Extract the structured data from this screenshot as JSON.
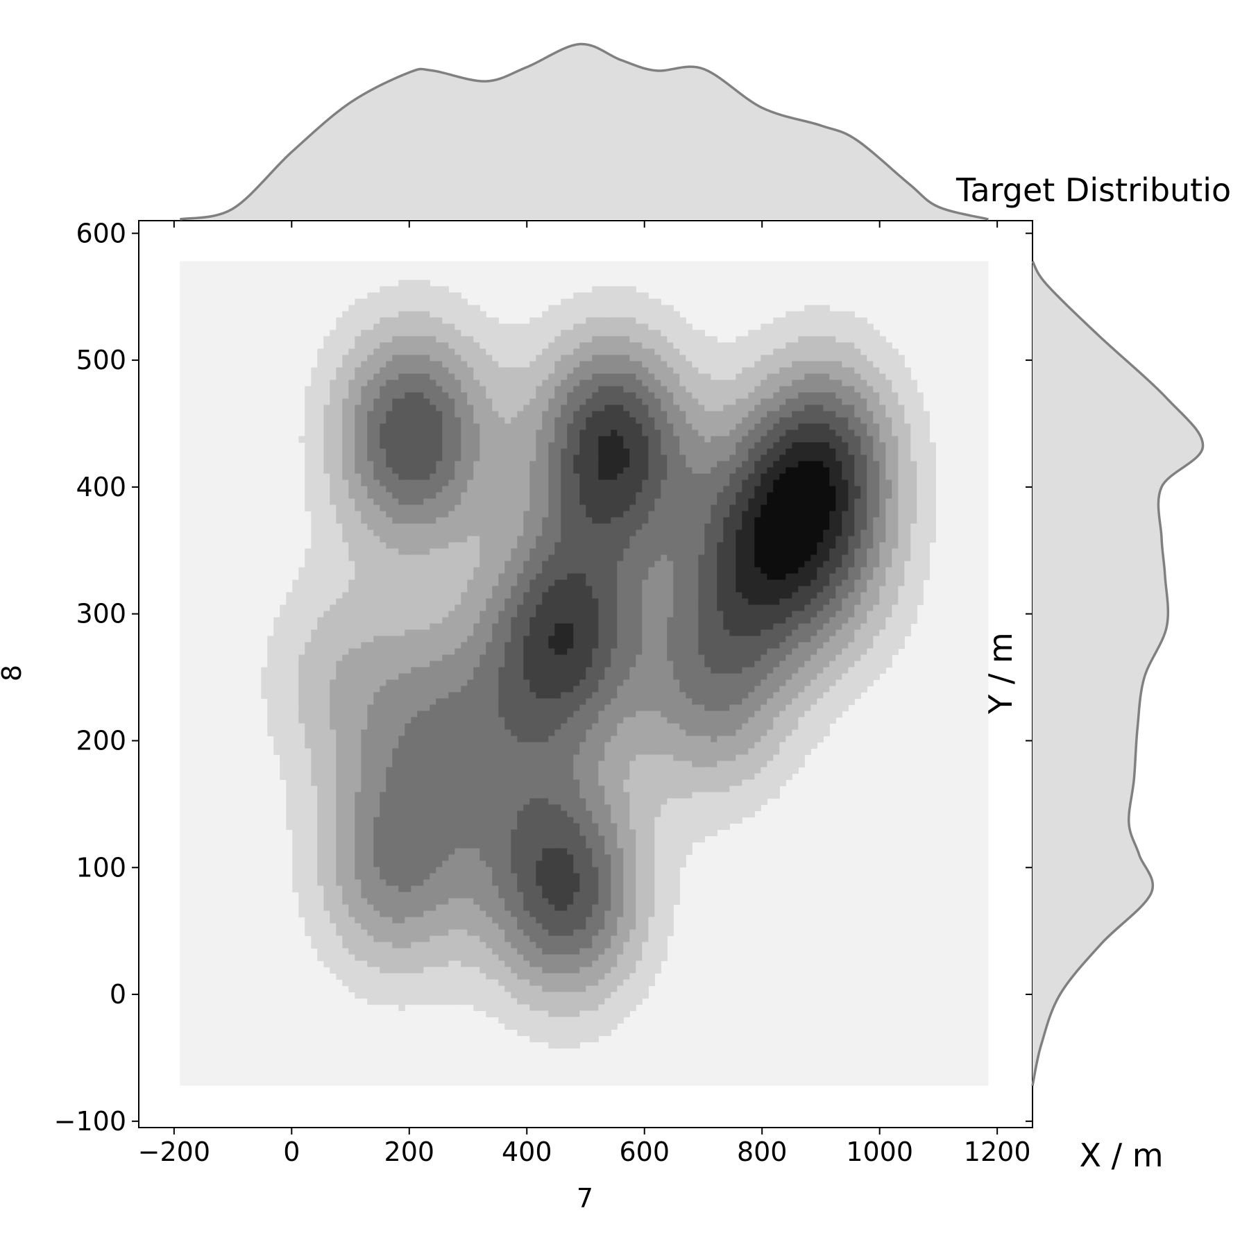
{
  "chart_data": {
    "type": "heatmap",
    "subtype": "kde-joint-plot",
    "title": "Target Distributio",
    "xlabel": "7",
    "ylabel": "8",
    "x_margin_label": "X / m",
    "y_margin_label": "Y / m",
    "xlim": [
      -260,
      1260
    ],
    "ylim": [
      -105,
      610
    ],
    "grid": false,
    "x_ticks": [
      -200,
      0,
      200,
      400,
      600,
      800,
      1000,
      1200
    ],
    "y_ticks": [
      -100,
      0,
      100,
      200,
      300,
      400,
      500,
      600
    ],
    "x_tick_labels": [
      "−200",
      "0",
      "200",
      "400",
      "600",
      "800",
      "1000",
      "1200"
    ],
    "y_tick_labels": [
      "−100",
      "0",
      "100",
      "200",
      "300",
      "400",
      "500",
      "600"
    ],
    "kde_grid_extent": {
      "x": [
        -190,
        1185
      ],
      "y": [
        -72,
        578
      ]
    },
    "colors": {
      "background_level": "#f2f2f2",
      "levels": [
        "#f2f2f2",
        "#d9d9d9",
        "#bfbfbf",
        "#a6a6a6",
        "#8c8c8c",
        "#737373",
        "#5a5a5a",
        "#404040",
        "#262626",
        "#0d0d0d"
      ],
      "marginal_fill": "#dedede",
      "marginal_line": "#808080"
    },
    "density_centers": [
      {
        "x": 205,
        "y": 440,
        "amplitude": 0.88
      },
      {
        "x": 545,
        "y": 432,
        "amplitude": 1.0
      },
      {
        "x": 900,
        "y": 420,
        "amplitude": 0.85
      },
      {
        "x": 790,
        "y": 345,
        "amplitude": 0.72
      },
      {
        "x": 460,
        "y": 282,
        "amplitude": 0.92
      },
      {
        "x": 465,
        "y": 80,
        "amplitude": 0.85
      },
      {
        "x": 175,
        "y": 100,
        "amplitude": 0.6
      },
      {
        "x": 715,
        "y": 240,
        "amplitude": 0.55
      },
      {
        "x": 250,
        "y": 215,
        "amplitude": 0.42
      },
      {
        "x": 920,
        "y": 330,
        "amplitude": 0.3
      },
      {
        "x": 380,
        "y": 170,
        "amplitude": 0.25
      },
      {
        "x": 80,
        "y": 250,
        "amplitude": 0.3
      }
    ],
    "x_marginal": {
      "x": [
        -190,
        -100,
        0,
        100,
        200,
        240,
        330,
        400,
        490,
        560,
        620,
        700,
        800,
        900,
        960,
        1050,
        1100,
        1185
      ],
      "density": [
        0.0,
        0.06,
        0.38,
        0.66,
        0.83,
        0.84,
        0.78,
        0.86,
        0.99,
        0.9,
        0.84,
        0.85,
        0.63,
        0.53,
        0.45,
        0.2,
        0.07,
        0.0
      ]
    },
    "y_marginal": {
      "y": [
        -72,
        -40,
        0,
        40,
        80,
        110,
        135,
        170,
        210,
        250,
        290,
        330,
        360,
        400,
        432,
        470,
        520,
        560,
        578
      ],
      "density": [
        0.0,
        0.05,
        0.16,
        0.4,
        0.69,
        0.62,
        0.56,
        0.59,
        0.61,
        0.65,
        0.78,
        0.77,
        0.75,
        0.75,
        0.99,
        0.78,
        0.38,
        0.08,
        0.0
      ]
    }
  }
}
